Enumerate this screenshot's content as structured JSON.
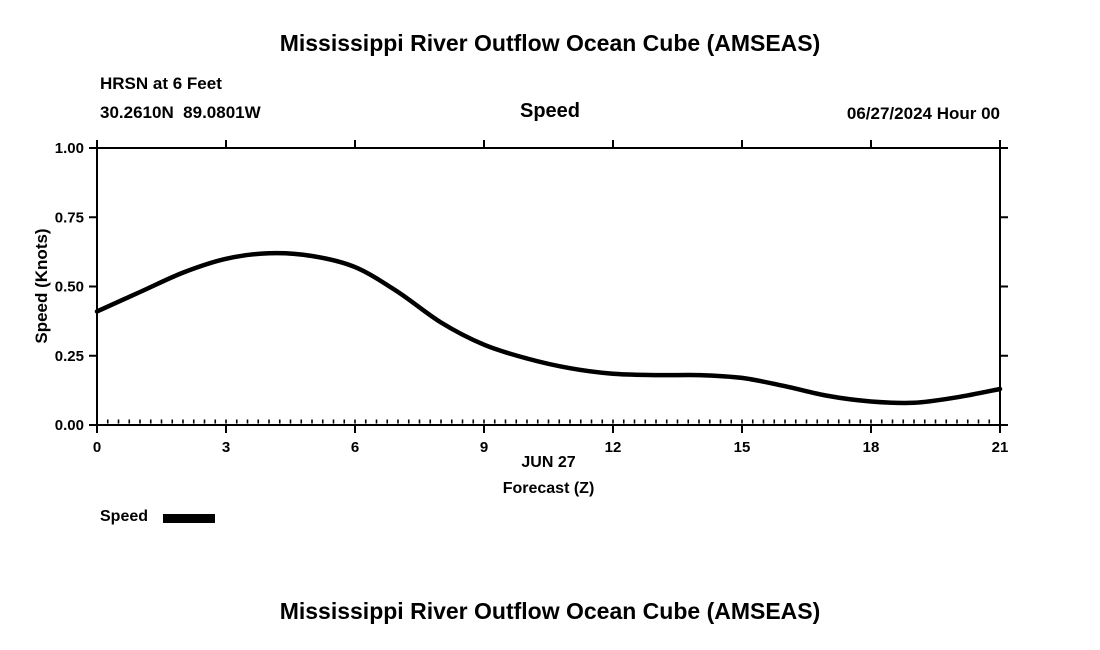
{
  "header": {
    "title": "Mississippi River Outflow Ocean Cube (AMSEAS)",
    "station_line1": "HRSN at 6 Feet",
    "station_line2": "30.2610N  89.0801W",
    "panel_label": "Speed",
    "datetime_label": "06/27/2024 Hour 00"
  },
  "chart_data": {
    "type": "line",
    "title": "Speed",
    "xlabel": "Forecast (Z)",
    "x_sublabel": "JUN 27",
    "ylabel": "Speed (Knots)",
    "xlim": [
      0,
      21
    ],
    "ylim": [
      0,
      1
    ],
    "x_ticks": [
      0,
      3,
      6,
      9,
      12,
      15,
      18,
      21
    ],
    "y_ticks": [
      "0.00",
      "0.25",
      "0.50",
      "0.75",
      "1.00"
    ],
    "grid": false,
    "legend_position": "bottom-left",
    "line_color": "#000000",
    "line_width": 4.5,
    "x": [
      0,
      1,
      2,
      3,
      4,
      5,
      6,
      7,
      8,
      9,
      10,
      11,
      12,
      13,
      14,
      15,
      16,
      17,
      18,
      19,
      20,
      21
    ],
    "series": [
      {
        "name": "Speed",
        "values": [
          0.41,
          0.48,
          0.55,
          0.6,
          0.62,
          0.61,
          0.57,
          0.48,
          0.37,
          0.29,
          0.24,
          0.205,
          0.185,
          0.18,
          0.18,
          0.17,
          0.14,
          0.105,
          0.085,
          0.08,
          0.1,
          0.13
        ]
      }
    ]
  },
  "legend": {
    "label": "Speed"
  },
  "footer": {
    "title": "Mississippi River Outflow Ocean Cube (AMSEAS)"
  }
}
